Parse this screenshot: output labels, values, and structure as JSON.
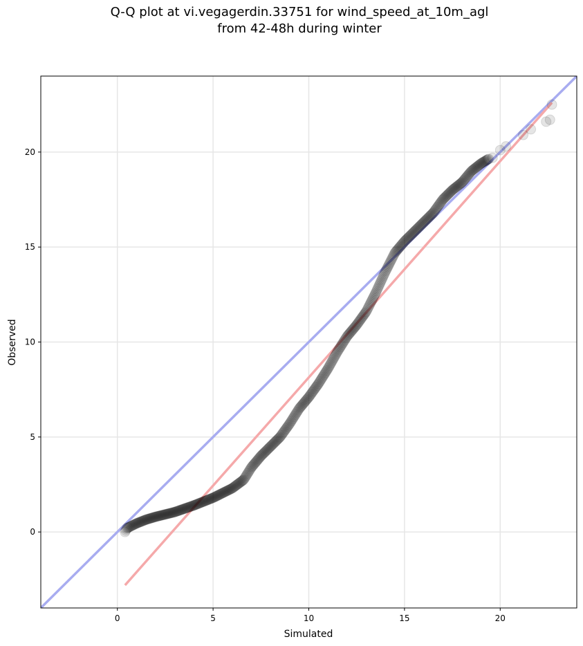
{
  "chart_data": {
    "type": "scatter",
    "title_lines": [
      "Q-Q plot at vi.vegagerdin.33751 for wind_speed_at_10m_agl",
      "from 42-48h during winter"
    ],
    "xlabel": "Simulated",
    "ylabel": "Observed",
    "xlim": [
      -4,
      24
    ],
    "ylim": [
      -4,
      24
    ],
    "x_ticks": [
      0,
      5,
      10,
      15,
      20
    ],
    "y_ticks": [
      0,
      5,
      10,
      15,
      20
    ],
    "x_tick_labels": [
      "0",
      "5",
      "10",
      "15",
      "20"
    ],
    "y_tick_labels": [
      "0",
      "5",
      "10",
      "15",
      "20"
    ],
    "grid": true,
    "reference_lines": [
      {
        "kind": "identity",
        "color": "#a8acf0",
        "points": [
          [
            -4,
            -4
          ],
          [
            24,
            24
          ]
        ]
      },
      {
        "kind": "fit",
        "color": "#f5a9aa",
        "points": [
          [
            0.4,
            -2.8
          ],
          [
            22.7,
            22.6
          ]
        ]
      }
    ],
    "point_color": "#000000",
    "quantile_anchors": [
      [
        0.4,
        0.0
      ],
      [
        0.5,
        0.2
      ],
      [
        1.0,
        0.45
      ],
      [
        1.5,
        0.65
      ],
      [
        2.0,
        0.8
      ],
      [
        3.0,
        1.05
      ],
      [
        4.0,
        1.4
      ],
      [
        5.0,
        1.8
      ],
      [
        6.0,
        2.3
      ],
      [
        6.6,
        2.75
      ],
      [
        7.0,
        3.4
      ],
      [
        7.5,
        4.0
      ],
      [
        8.0,
        4.5
      ],
      [
        8.5,
        5.0
      ],
      [
        9.0,
        5.7
      ],
      [
        9.5,
        6.5
      ],
      [
        10.0,
        7.1
      ],
      [
        10.5,
        7.8
      ],
      [
        11.0,
        8.6
      ],
      [
        11.5,
        9.5
      ],
      [
        12.0,
        10.3
      ],
      [
        12.5,
        10.9
      ],
      [
        13.0,
        11.6
      ],
      [
        13.5,
        12.6
      ],
      [
        14.0,
        13.7
      ],
      [
        14.5,
        14.7
      ],
      [
        15.0,
        15.3
      ],
      [
        15.5,
        15.8
      ],
      [
        16.0,
        16.3
      ],
      [
        16.5,
        16.8
      ],
      [
        17.0,
        17.5
      ],
      [
        17.5,
        18.0
      ],
      [
        18.0,
        18.4
      ],
      [
        18.5,
        19.0
      ],
      [
        19.0,
        19.4
      ],
      [
        19.5,
        19.7
      ],
      [
        20.0,
        20.0
      ],
      [
        20.5,
        20.3
      ],
      [
        21.0,
        20.8
      ],
      [
        21.5,
        21.2
      ],
      [
        22.5,
        21.6
      ],
      [
        22.7,
        22.5
      ]
    ],
    "tail_points": [
      [
        19.6,
        19.7
      ],
      [
        20.0,
        20.1
      ],
      [
        20.3,
        20.3
      ],
      [
        21.2,
        20.9
      ],
      [
        21.6,
        21.2
      ],
      [
        22.4,
        21.6
      ],
      [
        22.6,
        21.7
      ],
      [
        22.7,
        22.5
      ]
    ]
  }
}
